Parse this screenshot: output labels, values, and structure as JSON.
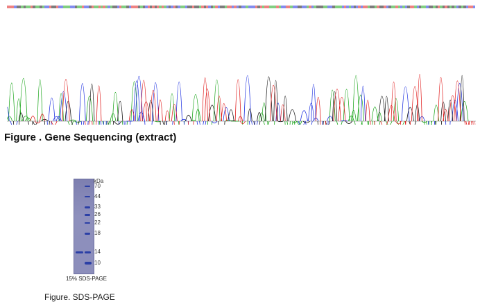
{
  "gene_sequencing": {
    "caption": "Figure . Gene Sequencing (extract)",
    "trace_colors": {
      "A": "#1aa51a",
      "C": "#1b2ee0",
      "G": "#111111",
      "T": "#e01b1b"
    }
  },
  "sds_page": {
    "kda_unit": "kDa",
    "markers": [
      "70",
      "44",
      "33",
      "26",
      "22",
      "18",
      "14",
      "10"
    ],
    "gel_label": "15% SDS-PAGE",
    "caption": "Figure. SDS-PAGE",
    "band_color": "#2b3fa6"
  }
}
